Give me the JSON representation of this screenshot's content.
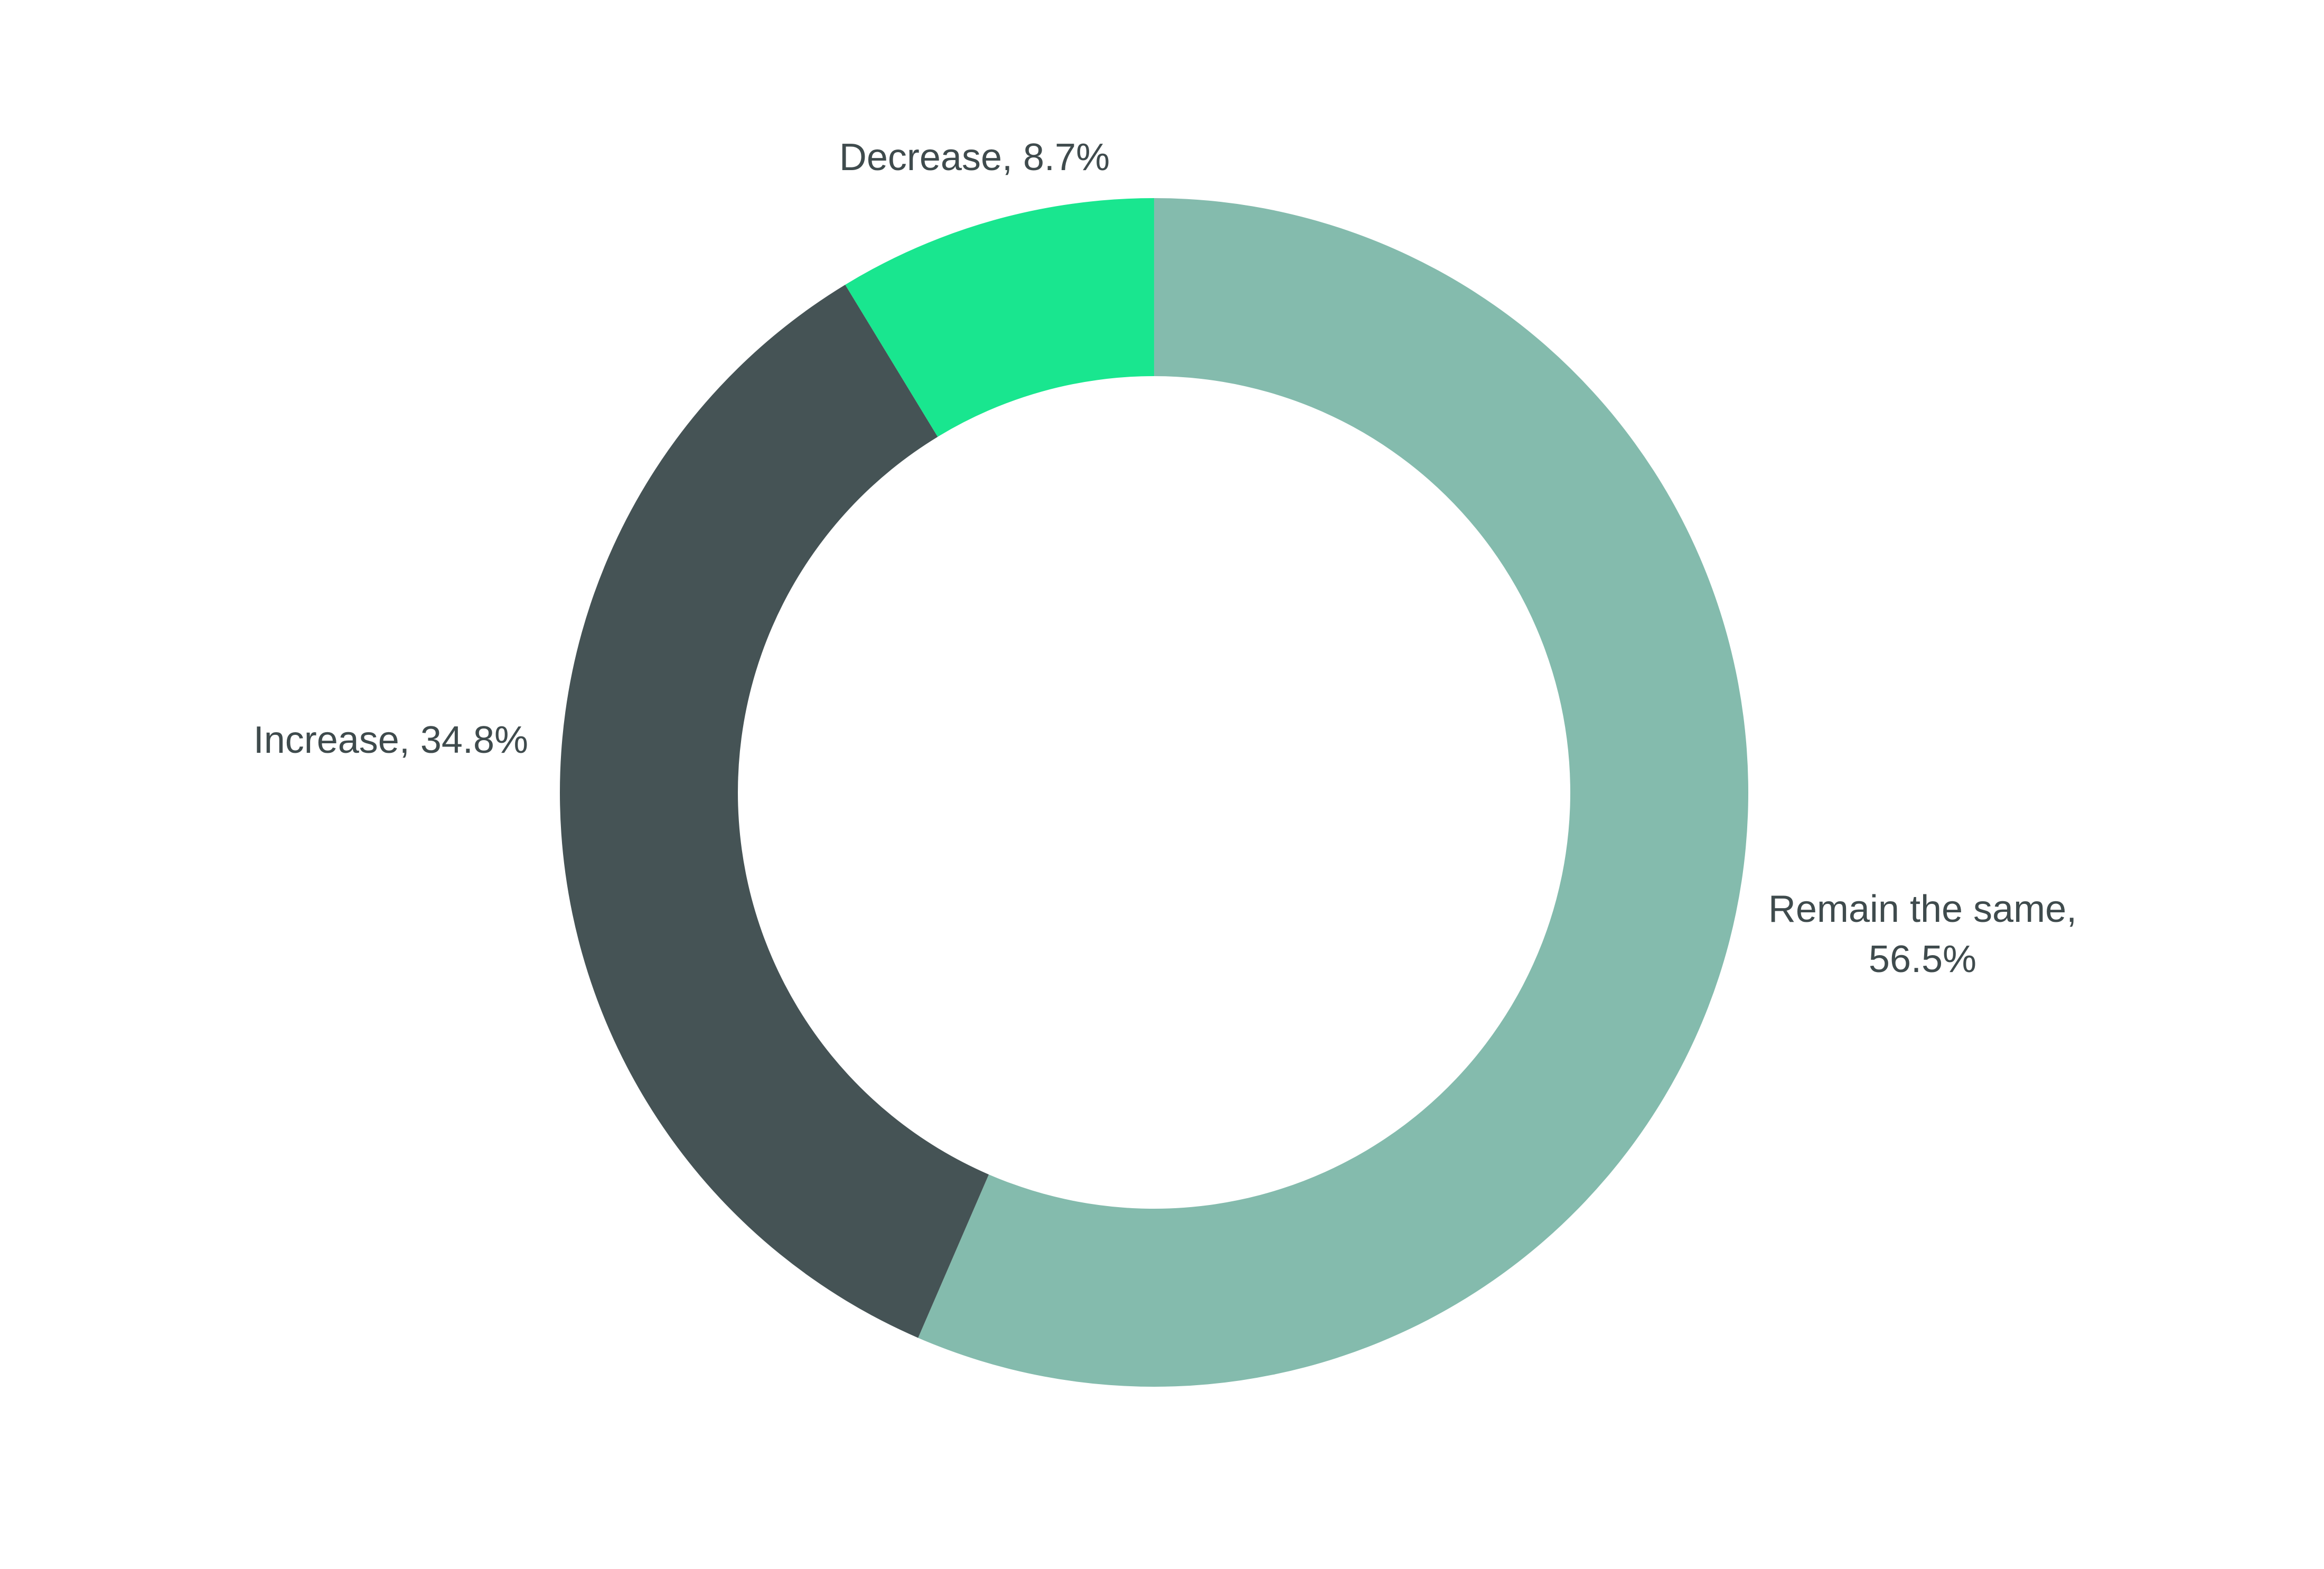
{
  "chart_data": {
    "type": "pie",
    "donut": true,
    "title": "",
    "slices": [
      {
        "name": "Remain the same",
        "value": 56.5,
        "label_lines": [
          "Remain the same,",
          "56.5%"
        ],
        "color": "#84bbad"
      },
      {
        "name": "Increase",
        "value": 34.8,
        "label_lines": [
          "Increase, 34.8%"
        ],
        "color": "#455355"
      },
      {
        "name": "Decrease",
        "value": 8.7,
        "label_lines": [
          "Decrease, 8.7%"
        ],
        "color": "#19e68f"
      }
    ],
    "start": "12 o'clock",
    "direction": "clockwise",
    "legend": "none"
  }
}
